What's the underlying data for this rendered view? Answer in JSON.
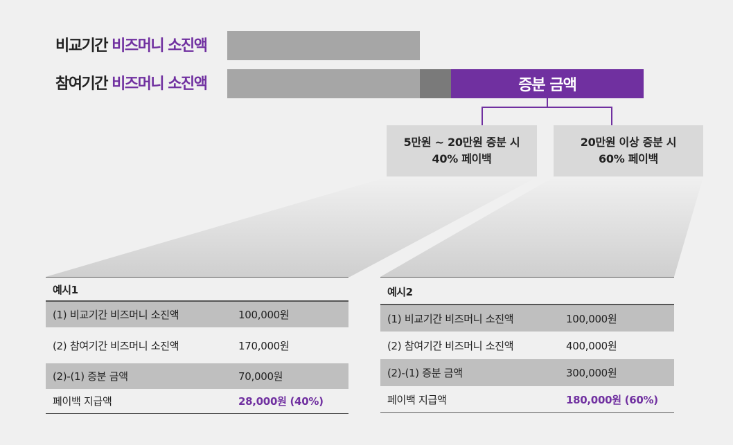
{
  "comparison_row": {
    "label_black": "비교기간",
    "label_purple": "비즈머니 소진액"
  },
  "participation_row": {
    "label_black": "참여기간",
    "label_purple": "비즈머니 소진액",
    "increase_label": "증분 금액"
  },
  "tiers": [
    {
      "line1": "5만원 ~ 20만원 증분 시",
      "line2": "40% 페이백"
    },
    {
      "line1": "20만원 이상 증분 시",
      "line2": "60% 페이백"
    }
  ],
  "examples": [
    {
      "title": "예시1",
      "rows": [
        {
          "label": "(1)   비교기간 비즈머니 소진액",
          "value": "100,000원"
        },
        {
          "label": "(2)  참여기간 비즈머니 소진액",
          "value": "170,000원"
        },
        {
          "label": "(2)-(1) 증분 금액",
          "value": "70,000원"
        },
        {
          "label": "페이백 지급액",
          "value": "28,000원 (40%)"
        }
      ]
    },
    {
      "title": "예시2",
      "rows": [
        {
          "label": "(1)   비교기간 비즈머니 소진액",
          "value": "100,000원"
        },
        {
          "label": "(2)  참여기간 비즈머니 소진액",
          "value": "400,000원"
        },
        {
          "label": "(2)-(1) 증분 금액",
          "value": "300,000원"
        },
        {
          "label": "페이백 지급액",
          "value": "180,000원 (60%)"
        }
      ]
    }
  ],
  "colors": {
    "accent": "#7030a0",
    "bar_gray": "#a6a6a6",
    "bar_dark": "#7a7a7a",
    "box_gray": "#d9d9d9",
    "row_shade": "#bfbfbf"
  }
}
